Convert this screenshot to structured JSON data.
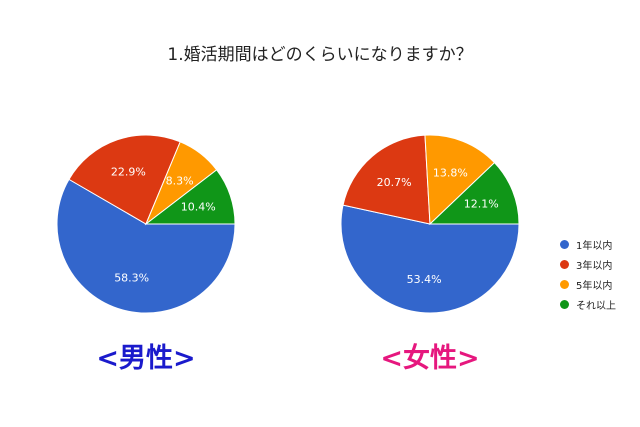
{
  "title": "1.婚活期間はどのくらいになりますか？",
  "colors": {
    "series": [
      "#3366cc",
      "#dc3912",
      "#ff9900",
      "#109618"
    ],
    "male_label": "#1a1acc",
    "female_label": "#e6177e"
  },
  "legend": [
    "1年以内",
    "3年以内",
    "5年以内",
    "それ以上"
  ],
  "group_labels": {
    "male": "<男性>",
    "female": "<女性>"
  },
  "chart_data": [
    {
      "type": "pie",
      "labels": [
        "1年以内",
        "3年以内",
        "5年以内",
        "それ以上"
      ],
      "values": [
        58.3,
        22.9,
        8.3,
        10.4
      ],
      "value_labels": [
        "58.3%",
        "22.9%",
        "8.3%",
        "10.4%"
      ],
      "legend_position": "right"
    },
    {
      "type": "pie",
      "labels": [
        "1年以内",
        "3年以内",
        "5年以内",
        "それ以上"
      ],
      "values": [
        53.4,
        20.7,
        13.8,
        12.1
      ],
      "value_labels": [
        "53.4%",
        "20.7%",
        "13.8%",
        "12.1%"
      ],
      "legend_position": "right"
    }
  ]
}
